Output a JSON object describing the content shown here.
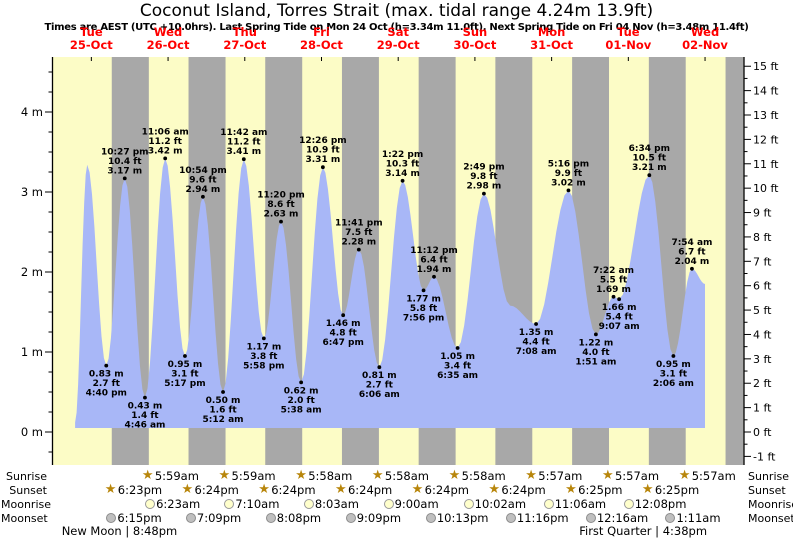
{
  "header": {
    "title": "Coconut Island, Torres Strait (max. tidal range 4.24m 13.9ft)",
    "subtitle": "Times are AEST (UTC +10.0hrs). Last Spring Tide on Mon 24 Oct (h=3.34m 11.0ft). Next Spring Tide on Fri 04 Nov (h=3.48m 11.4ft)"
  },
  "chart_data": {
    "type": "area",
    "title": "Coconut Island, Torres Strait (max. tidal range 4.24m 13.9ft)",
    "days": [
      {
        "weekday": "Tue",
        "date": "25-Oct"
      },
      {
        "weekday": "Wed",
        "date": "26-Oct"
      },
      {
        "weekday": "Thu",
        "date": "27-Oct"
      },
      {
        "weekday": "Fri",
        "date": "28-Oct"
      },
      {
        "weekday": "Sat",
        "date": "29-Oct"
      },
      {
        "weekday": "Sun",
        "date": "30-Oct"
      },
      {
        "weekday": "Mon",
        "date": "31-Oct"
      },
      {
        "weekday": "Tue",
        "date": "01-Nov"
      },
      {
        "weekday": "Wed",
        "date": "02-Nov"
      }
    ],
    "y_axis_left": {
      "unit": "m",
      "tick_labels": [
        "4 m",
        "3 m",
        "2 m",
        "1 m",
        "0 m"
      ],
      "tick_values": [
        4,
        3,
        2,
        1,
        0
      ],
      "minor_step_m": 0.25,
      "range_m": [
        -0.4,
        4.65
      ]
    },
    "y_axis_right": {
      "unit": "ft",
      "tick_labels": [
        "15 ft",
        "14 ft",
        "13 ft",
        "12 ft",
        "11 ft",
        "10 ft",
        "9 ft",
        "8 ft",
        "7 ft",
        "6 ft",
        "5 ft",
        "4 ft",
        "3 ft",
        "2 ft",
        "1 ft",
        "0 ft",
        "-1 ft"
      ],
      "tick_values": [
        15,
        14,
        13,
        12,
        11,
        10,
        9,
        8,
        7,
        6,
        5,
        4,
        3,
        2,
        1,
        0,
        -1
      ]
    },
    "tides": [
      {
        "day": 0,
        "hour": 10.7,
        "m": "3.34",
        "type": "high",
        "labeled": false
      },
      {
        "day": 0,
        "time": "4:40 pm",
        "m": "0.83",
        "ft": "2.7",
        "type": "low"
      },
      {
        "day": 0,
        "time": "10:27 pm",
        "m": "3.17",
        "ft": "10.4",
        "type": "high"
      },
      {
        "day": 1,
        "time": "4:46 am",
        "m": "0.43",
        "ft": "1.4",
        "type": "low"
      },
      {
        "day": 1,
        "time": "11:06 am",
        "m": "3.42",
        "ft": "11.2",
        "type": "high"
      },
      {
        "day": 1,
        "time": "5:17 pm",
        "m": "0.95",
        "ft": "3.1",
        "type": "low"
      },
      {
        "day": 1,
        "time": "10:54 pm",
        "m": "2.94",
        "ft": "9.6",
        "type": "high"
      },
      {
        "day": 2,
        "time": "5:12 am",
        "m": "0.50",
        "ft": "1.6",
        "type": "low"
      },
      {
        "day": 2,
        "time": "11:42 am",
        "m": "3.41",
        "ft": "11.2",
        "type": "high"
      },
      {
        "day": 2,
        "time": "5:58 pm",
        "m": "1.17",
        "ft": "3.8",
        "type": "low"
      },
      {
        "day": 2,
        "time": "11:20 pm",
        "m": "2.63",
        "ft": "8.6",
        "type": "high"
      },
      {
        "day": 3,
        "time": "5:38 am",
        "m": "0.62",
        "ft": "2.0",
        "type": "low"
      },
      {
        "day": 3,
        "time": "12:26 pm",
        "m": "3.31",
        "ft": "10.9",
        "type": "high"
      },
      {
        "day": 3,
        "time": "6:47 pm",
        "m": "1.46",
        "ft": "4.8",
        "type": "low"
      },
      {
        "day": 3,
        "time": "11:41 pm",
        "m": "2.28",
        "ft": "7.5",
        "type": "high"
      },
      {
        "day": 4,
        "time": "6:06 am",
        "m": "0.81",
        "ft": "2.7",
        "type": "low"
      },
      {
        "day": 4,
        "time": "1:22 pm",
        "m": "3.14",
        "ft": "10.3",
        "type": "high"
      },
      {
        "day": 4,
        "time": "7:56 pm",
        "m": "1.77",
        "ft": "5.8",
        "type": "low"
      },
      {
        "day": 4,
        "time": "11:12 pm",
        "m": "1.94",
        "ft": "6.4",
        "type": "high"
      },
      {
        "day": 5,
        "time": "6:35 am",
        "m": "1.05",
        "ft": "3.4",
        "type": "low"
      },
      {
        "day": 5,
        "time": "2:49 pm",
        "m": "2.98",
        "ft": "9.8",
        "type": "high"
      },
      {
        "day": 5,
        "hour": 23.0,
        "m": "1.58",
        "type": "shoulder",
        "labeled": false
      },
      {
        "day": 6,
        "time": "7:08 am",
        "m": "1.35",
        "ft": "4.4",
        "type": "low"
      },
      {
        "day": 6,
        "time": "5:16 pm",
        "m": "3.02",
        "ft": "9.9",
        "type": "high"
      },
      {
        "day": 7,
        "time": "1:51 am",
        "m": "1.22",
        "ft": "4.0",
        "type": "low"
      },
      {
        "day": 7,
        "time": "7:22 am",
        "m": "1.69",
        "ft": "5.5",
        "type": "high"
      },
      {
        "day": 7,
        "time": "9:07 am",
        "m": "1.66",
        "ft": "5.4",
        "type": "low"
      },
      {
        "day": 7,
        "time": "6:34 pm",
        "m": "3.21",
        "ft": "10.5",
        "type": "high"
      },
      {
        "day": 8,
        "time": "2:06 am",
        "m": "0.95",
        "ft": "3.1",
        "type": "low"
      },
      {
        "day": 8,
        "time": "7:54 am",
        "m": "2.04",
        "ft": "6.7",
        "type": "high"
      }
    ],
    "curve_start": {
      "day": 0,
      "hour": 6.9,
      "m": "0.12"
    },
    "curve_end": {
      "day": 8,
      "hour": 12.0,
      "m": "1.85"
    },
    "colors": {
      "day_band": "#FCFCC6",
      "night_band": "#A8A8A8",
      "tide_fill": "#A8B7F7",
      "day_label": "#FF0000",
      "annotation": "#000000",
      "axis": "#000000",
      "star": "#B8860B",
      "moonrise_fill": "#FFFFCC",
      "moonrise_border": "#999999",
      "moonset_fill": "#BFBFBF",
      "moonset_border": "#8C8C8C"
    }
  },
  "astro": {
    "rows": [
      {
        "id": "sunrise",
        "label": "Sunrise",
        "icon": "sunrise-star-icon",
        "times": [
          null,
          "5:59am",
          "5:59am",
          "5:58am",
          "5:58am",
          "5:58am",
          "5:57am",
          "5:57am",
          "5:57am"
        ]
      },
      {
        "id": "sunset",
        "label": "Sunset",
        "icon": "sunset-star-icon",
        "times": [
          "6:23pm",
          "6:24pm",
          "6:24pm",
          "6:24pm",
          "6:24pm",
          "6:24pm",
          "6:25pm",
          "6:25pm",
          null
        ]
      },
      {
        "id": "moonrise",
        "label": "Moonrise",
        "icon": "moonrise-icon",
        "times": [
          null,
          "6:23am",
          "7:10am",
          "8:03am",
          "9:00am",
          "10:02am",
          "11:06am",
          "12:08pm",
          null
        ]
      },
      {
        "id": "moonset",
        "label": "Moonset",
        "icon": "moonset-icon",
        "times": [
          "6:15pm",
          "7:09pm",
          "8:08pm",
          "9:09pm",
          "10:13pm",
          "11:16pm",
          null,
          "12:16am",
          "1:11am"
        ]
      }
    ],
    "moon_phases": [
      {
        "label": "New Moon | 8:48pm",
        "day": 0,
        "time": "8:48pm"
      },
      {
        "label": "First Quarter | 4:38pm",
        "day": 7,
        "time": "4:38pm"
      }
    ]
  }
}
